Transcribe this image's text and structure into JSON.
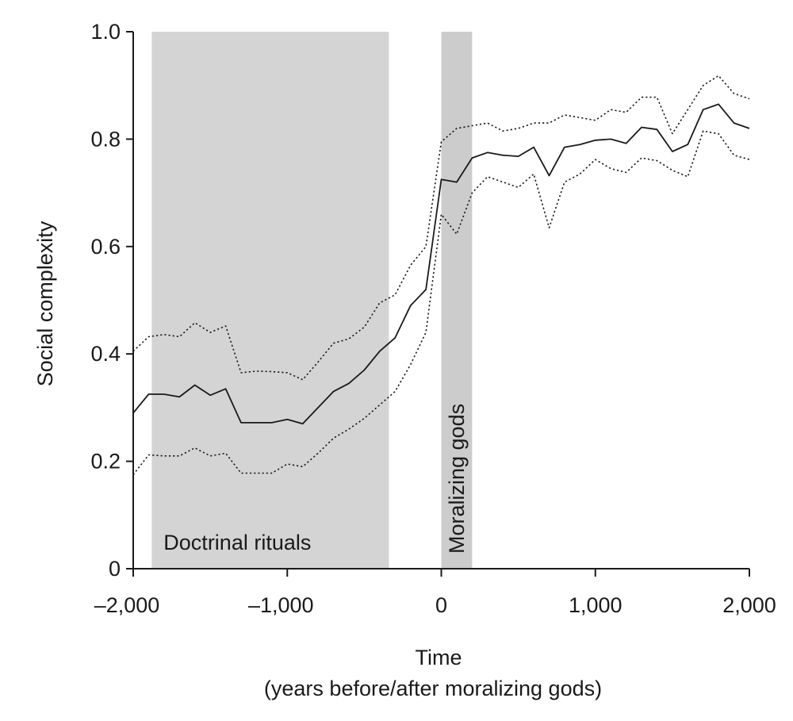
{
  "chart_data": {
    "type": "line",
    "title": "",
    "xlabel": "Time",
    "xlabel_sub": "(years before/after moralizing gods)",
    "ylabel": "Social complexity",
    "xlim": [
      -2000,
      2000
    ],
    "ylim": [
      0,
      1.0
    ],
    "x_ticks": [
      {
        "value": -2000,
        "label": "–2,000"
      },
      {
        "value": -1000,
        "label": "–1,000"
      },
      {
        "value": 0,
        "label": "0"
      },
      {
        "value": 1000,
        "label": "1,000"
      },
      {
        "value": 2000,
        "label": "2,000"
      }
    ],
    "y_ticks": [
      {
        "value": 0,
        "label": "0"
      },
      {
        "value": 0.2,
        "label": "0.2"
      },
      {
        "value": 0.4,
        "label": "0.4"
      },
      {
        "value": 0.6,
        "label": "0.6"
      },
      {
        "value": 0.8,
        "label": "0.8"
      },
      {
        "value": 1.0,
        "label": "1.0"
      }
    ],
    "grid": false,
    "shaded_regions": [
      {
        "label": "Doctrinal rituals",
        "x_start": -1880,
        "x_end": -340,
        "color": "#d4d4d4",
        "label_orientation": "horizontal"
      },
      {
        "label": "Moralizing gods",
        "x_start": 0,
        "x_end": 200,
        "color": "#cccccc",
        "label_orientation": "vertical"
      }
    ],
    "x": [
      -2000,
      -1900,
      -1800,
      -1700,
      -1600,
      -1500,
      -1400,
      -1300,
      -1200,
      -1100,
      -1000,
      -900,
      -800,
      -700,
      -600,
      -500,
      -400,
      -300,
      -200,
      -100,
      0,
      100,
      200,
      300,
      400,
      500,
      600,
      700,
      800,
      900,
      1000,
      1100,
      1200,
      1300,
      1400,
      1500,
      1600,
      1700,
      1800,
      1900,
      2000
    ],
    "series": [
      {
        "role": "mean",
        "style": "solid",
        "color": "#1a1a1a",
        "values": [
          0.29,
          0.325,
          0.325,
          0.32,
          0.342,
          0.323,
          0.335,
          0.272,
          0.272,
          0.272,
          0.278,
          0.27,
          0.3,
          0.33,
          0.345,
          0.37,
          0.405,
          0.43,
          0.49,
          0.52,
          0.725,
          0.72,
          0.765,
          0.775,
          0.77,
          0.768,
          0.785,
          0.732,
          0.785,
          0.79,
          0.798,
          0.8,
          0.792,
          0.822,
          0.818,
          0.777,
          0.79,
          0.855,
          0.865,
          0.83,
          0.82
        ]
      },
      {
        "role": "upper bound",
        "style": "dotted",
        "color": "#1a1a1a",
        "values": [
          0.405,
          0.432,
          0.436,
          0.432,
          0.458,
          0.44,
          0.452,
          0.365,
          0.368,
          0.367,
          0.365,
          0.352,
          0.385,
          0.42,
          0.428,
          0.45,
          0.495,
          0.51,
          0.565,
          0.6,
          0.795,
          0.82,
          0.825,
          0.83,
          0.815,
          0.82,
          0.83,
          0.83,
          0.845,
          0.84,
          0.835,
          0.855,
          0.85,
          0.878,
          0.878,
          0.81,
          0.855,
          0.9,
          0.918,
          0.885,
          0.875
        ]
      },
      {
        "role": "lower bound",
        "style": "dotted",
        "color": "#1a1a1a",
        "values": [
          0.175,
          0.212,
          0.21,
          0.21,
          0.225,
          0.21,
          0.215,
          0.178,
          0.178,
          0.178,
          0.195,
          0.19,
          0.215,
          0.243,
          0.26,
          0.28,
          0.305,
          0.33,
          0.38,
          0.44,
          0.66,
          0.623,
          0.7,
          0.73,
          0.72,
          0.71,
          0.735,
          0.635,
          0.72,
          0.735,
          0.762,
          0.745,
          0.738,
          0.765,
          0.76,
          0.742,
          0.73,
          0.815,
          0.81,
          0.77,
          0.762
        ]
      }
    ]
  }
}
